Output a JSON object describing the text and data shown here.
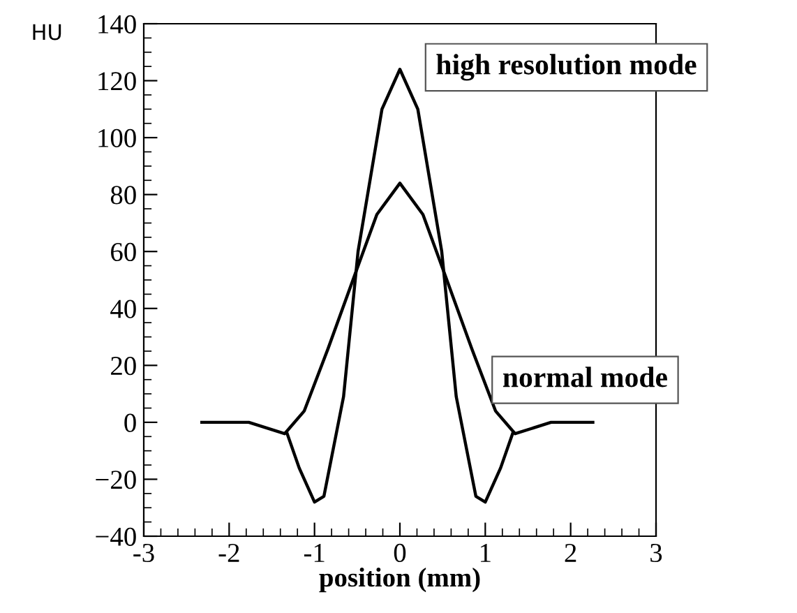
{
  "chart_data": {
    "type": "line",
    "xlabel": "position (mm)",
    "ylabel": "HU",
    "series": [
      {
        "color": "#000000",
        "x": [
          -2.32,
          -1.77,
          -1.35,
          -1.12,
          -0.84,
          -0.55,
          -0.27,
          0,
          0.27,
          0.55,
          0.84,
          1.12,
          1.35,
          1.77,
          2.26
        ],
        "values": [
          0,
          0,
          -4,
          4,
          26,
          50,
          73,
          84,
          73,
          50,
          26,
          4,
          -4,
          0,
          0
        ]
      },
      {
        "color": "#000000",
        "x": [
          -1.32,
          -1.18,
          -1.0,
          -0.89,
          -0.66,
          -0.49,
          -0.21,
          0,
          0.21,
          0.49,
          0.66,
          0.89,
          1.0,
          1.18,
          1.32
        ],
        "values": [
          -4,
          -16,
          -28,
          -26,
          9,
          60,
          110,
          124,
          110,
          60,
          9,
          -26,
          -28,
          -16,
          -4
        ]
      }
    ],
    "annotations": [
      "high resolution mode",
      "normal mode"
    ],
    "xlim": [
      -3,
      3
    ],
    "xticks": [
      -3,
      -2,
      -1,
      0,
      1,
      2,
      3
    ],
    "ylim": [
      -40,
      140
    ],
    "yticks": [
      {
        "value": -40,
        "label": "−40"
      },
      {
        "value": -20,
        "label": "−20"
      },
      0,
      20,
      40,
      60,
      80,
      100,
      120,
      140
    ],
    "grid": false,
    "legend": false,
    "marker": "none",
    "line_style": "solid"
  }
}
